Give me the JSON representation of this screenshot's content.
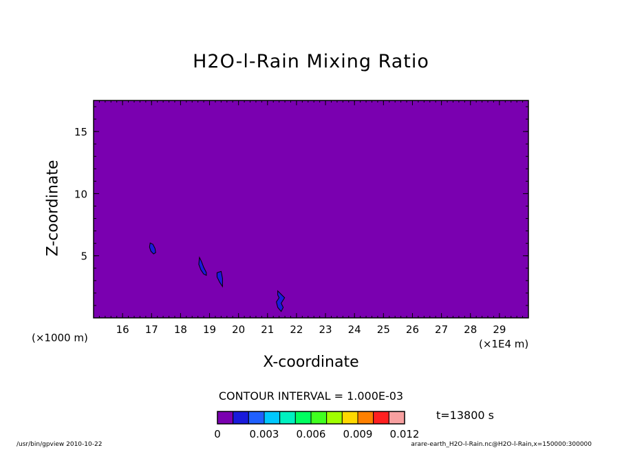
{
  "chart_data": {
    "type": "heatmap",
    "title": "H2O-l-Rain Mixing Ratio",
    "xlabel": "X-coordinate",
    "ylabel": "Z-coordinate",
    "x_unit_left": "(×1000 m)",
    "x_unit_right": "(×1E4 m)",
    "xlim": [
      150000,
      300000
    ],
    "ylim": [
      0,
      17.5
    ],
    "x_ticks": [
      16,
      17,
      18,
      19,
      20,
      21,
      22,
      23,
      24,
      25,
      26,
      27,
      28,
      29
    ],
    "y_ticks": [
      5,
      10,
      15
    ],
    "contour_interval": "CONTOUR INTERVAL = 1.000E-03",
    "time_label": "t=13800 s",
    "background_level": 0,
    "background_color": "#7a00b0",
    "features": [
      {
        "value_range": [
          0.001,
          0.002
        ],
        "color": "#1a1adb",
        "x": 170000,
        "z": 5.7
      },
      {
        "value_range": [
          0.001,
          0.002
        ],
        "color": "#1a1adb",
        "x": 187000,
        "z": 4.2
      },
      {
        "value_range": [
          0.001,
          0.002
        ],
        "color": "#1a1adb",
        "x": 194000,
        "z": 3.3
      },
      {
        "value_range": [
          0.001,
          0.002
        ],
        "color": "#1a1adb",
        "x": 214000,
        "z": 1.4
      }
    ],
    "colorbar": {
      "colors": [
        "#7a00b0",
        "#1a1adb",
        "#2060ff",
        "#00c8ff",
        "#00f0c0",
        "#00ff60",
        "#40ff20",
        "#a0ff00",
        "#ffd800",
        "#ff8000",
        "#ff2020",
        "#f8a0a0"
      ],
      "tick_labels": [
        "0",
        "0.003",
        "0.006",
        "0.009",
        "0.012"
      ],
      "tick_values": [
        0,
        0.003,
        0.006,
        0.009,
        0.012
      ]
    }
  },
  "footer": {
    "left": "/usr/bin/gpview   2010-10-22",
    "right": "arare-earth_H2O-l-Rain.nc@H2O-l-Rain,x=150000:300000"
  }
}
